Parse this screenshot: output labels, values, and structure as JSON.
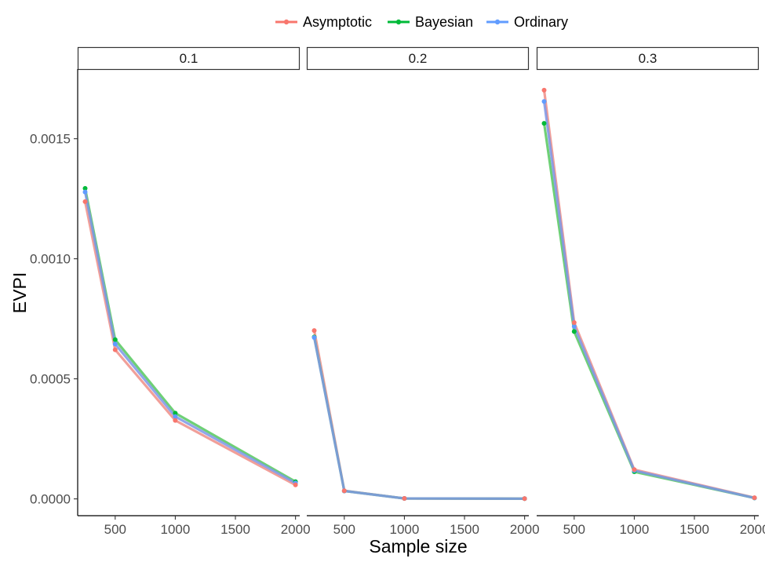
{
  "chart_data": {
    "type": "line",
    "xlabel": "Sample size",
    "ylabel": "EVPI",
    "x": [
      250,
      500,
      1000,
      2000
    ],
    "xticks": [
      500,
      1000,
      1500,
      2000
    ],
    "xtick_labels": [
      "500",
      "1000",
      "1500",
      "2000"
    ],
    "xlim": [
      188,
      2035
    ],
    "yticks": [
      0,
      0.0005,
      0.001,
      0.0015
    ],
    "ytick_labels": [
      "0.0000",
      "0.0005",
      "0.0010",
      "0.0015"
    ],
    "ylim": [
      -7e-05,
      0.00179
    ],
    "legend": {
      "position": "top",
      "entries": [
        "Asymptotic",
        "Bayesian",
        "Ordinary"
      ]
    },
    "colors": {
      "Asymptotic": "#F8766D",
      "Bayesian": "#00BA38",
      "Ordinary": "#619CFF"
    },
    "grid": false,
    "facets": [
      {
        "label": "0.1",
        "series": [
          {
            "name": "Asymptotic",
            "values": [
              0.001238,
              0.000621,
              0.000327,
              5.8e-05
            ]
          },
          {
            "name": "Bayesian",
            "values": [
              0.001293,
              0.000663,
              0.000357,
              7.2e-05
            ]
          },
          {
            "name": "Ordinary",
            "values": [
              0.001278,
              0.000645,
              0.000343,
              6.6e-05
            ]
          }
        ]
      },
      {
        "label": "0.2",
        "series": [
          {
            "name": "Asymptotic",
            "values": [
              0.000701,
              3.4e-05,
              2e-06,
              1e-06
            ]
          },
          {
            "name": "Bayesian",
            "values": [
              0.000674,
              3.3e-05,
              2e-06,
              1e-06
            ]
          },
          {
            "name": "Ordinary",
            "values": [
              0.000672,
              3.3e-05,
              2e-06,
              1e-06
            ]
          }
        ]
      },
      {
        "label": "0.3",
        "series": [
          {
            "name": "Asymptotic",
            "values": [
              0.001702,
              0.000734,
              0.000122,
              5e-06
            ]
          },
          {
            "name": "Bayesian",
            "values": [
              0.001564,
              0.000697,
              0.000113,
              4e-06
            ]
          },
          {
            "name": "Ordinary",
            "values": [
              0.001655,
              0.000718,
              0.000118,
              4e-06
            ]
          }
        ]
      }
    ]
  }
}
